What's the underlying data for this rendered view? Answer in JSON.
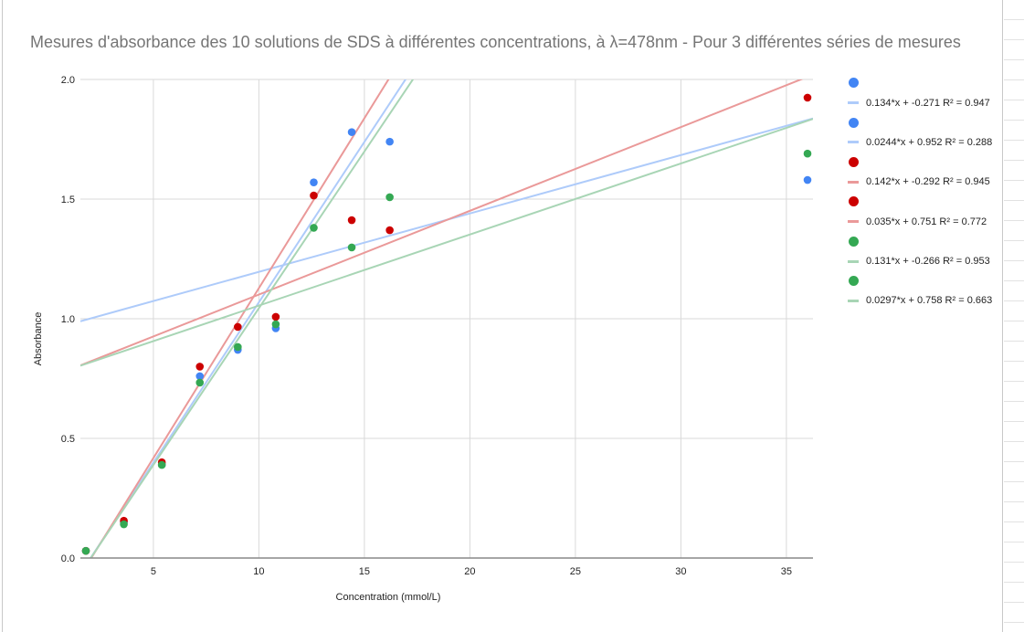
{
  "chart_data": {
    "type": "scatter",
    "title": "Mesures d'absorbance des 10 solutions de SDS à différentes concentrations, à λ=478nm - Pour 3 différentes séries de mesures",
    "xlabel": "Concentration (mmol/L)",
    "ylabel": "Absorbance",
    "xlim": [
      1.54,
      36.26
    ],
    "ylim": [
      0,
      2.0
    ],
    "xticks": [
      5,
      10,
      15,
      20,
      25,
      30,
      35
    ],
    "yticks": [
      "0.0",
      "0.5",
      "1.0",
      "1.5",
      "2.0"
    ],
    "grid": true,
    "legend_position": "right",
    "x": [
      1.8,
      3.6,
      5.4,
      7.2,
      9.0,
      10.8,
      12.6,
      14.4,
      16.2,
      36.0
    ],
    "series": [
      {
        "name": "",
        "color": "#4285f4",
        "line_color": "#aecbfa",
        "values": [
          0.03,
          0.15,
          0.39,
          0.76,
          0.87,
          0.96,
          1.57,
          1.78,
          1.74,
          1.58
        ],
        "trendlines": [
          {
            "slope": 0.134,
            "intercept": -0.271,
            "label": "0.134*x + -0.271 R² = 0.947"
          },
          {
            "slope": 0.0244,
            "intercept": 0.952,
            "label": "0.0244*x + 0.952 R² = 0.288"
          }
        ]
      },
      {
        "name": "",
        "color": "#cc0000",
        "line_color": "#ea9999",
        "values": [
          0.03,
          0.156,
          0.4,
          0.8,
          0.966,
          1.008,
          1.515,
          1.412,
          1.37,
          1.924
        ],
        "trendlines": [
          {
            "slope": 0.142,
            "intercept": -0.292,
            "label": "0.142*x + -0.292 R² = 0.945"
          },
          {
            "slope": 0.035,
            "intercept": 0.751,
            "label": "0.035*x + 0.751 R² = 0.772"
          }
        ]
      },
      {
        "name": "",
        "color": "#34a853",
        "line_color": "#a8d5b5",
        "values": [
          0.03,
          0.141,
          0.389,
          0.733,
          0.882,
          0.977,
          1.38,
          1.298,
          1.508,
          1.69
        ],
        "trendlines": [
          {
            "slope": 0.131,
            "intercept": -0.266,
            "label": "0.131*x + -0.266 R² = 0.953"
          },
          {
            "slope": 0.0297,
            "intercept": 0.758,
            "label": "0.0297*x + 0.758 R² = 0.663"
          }
        ]
      }
    ]
  }
}
